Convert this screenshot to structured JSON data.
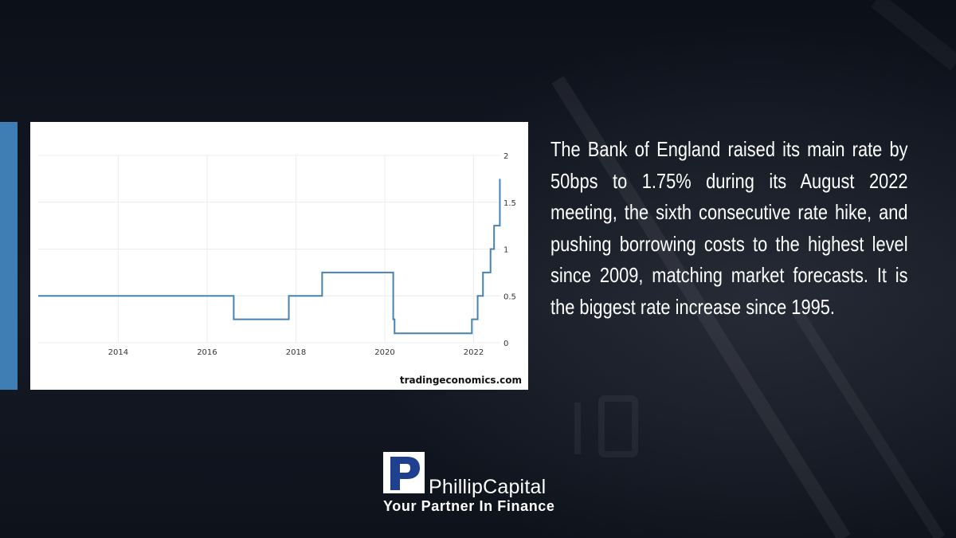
{
  "description": "The Bank of England raised its main rate by 50bps to 1.75% during its August 2022 meeting, the sixth consecutive rate hike, and pushing borrowing costs to the highest level since 2009, matching market forecasts. It is the biggest rate increase since 1995.",
  "chart_source": "tradingeconomics.com",
  "brand": {
    "name": "PhillipCapital",
    "tagline": "Your Partner In Finance"
  },
  "colors": {
    "line": "#4682b4",
    "accent": "#3f7db5",
    "logo_blue": "#1f3f8f"
  },
  "chart_data": {
    "type": "line",
    "title": "",
    "xlabel": "",
    "ylabel": "",
    "xlim": [
      2012.2,
      2022.6
    ],
    "ylim": [
      0,
      2
    ],
    "x_ticks": [
      2014,
      2016,
      2018,
      2020,
      2022
    ],
    "x_tick_labels": [
      "2014",
      "2016",
      "2018",
      "2020",
      "2022"
    ],
    "y_ticks": [
      0,
      0.5,
      1,
      1.5,
      2
    ],
    "y_tick_labels": [
      "0",
      "0.5",
      "1",
      "1.5",
      "2"
    ],
    "grid": true,
    "legend": "none",
    "y_axis_side": "right",
    "step": true,
    "series": [
      {
        "x": [
          2012.2,
          2016.6,
          2017.84,
          2018.59,
          2020.19,
          2020.22,
          2021.96,
          2022.09,
          2022.21,
          2022.38,
          2022.46
        ],
        "y": [
          0.5,
          0.25,
          0.5,
          0.75,
          0.25,
          0.1,
          0.25,
          0.5,
          0.75,
          1.0,
          1.25
        ]
      }
    ],
    "last_point": {
      "x": 2022.59,
      "y": 1.75
    }
  }
}
